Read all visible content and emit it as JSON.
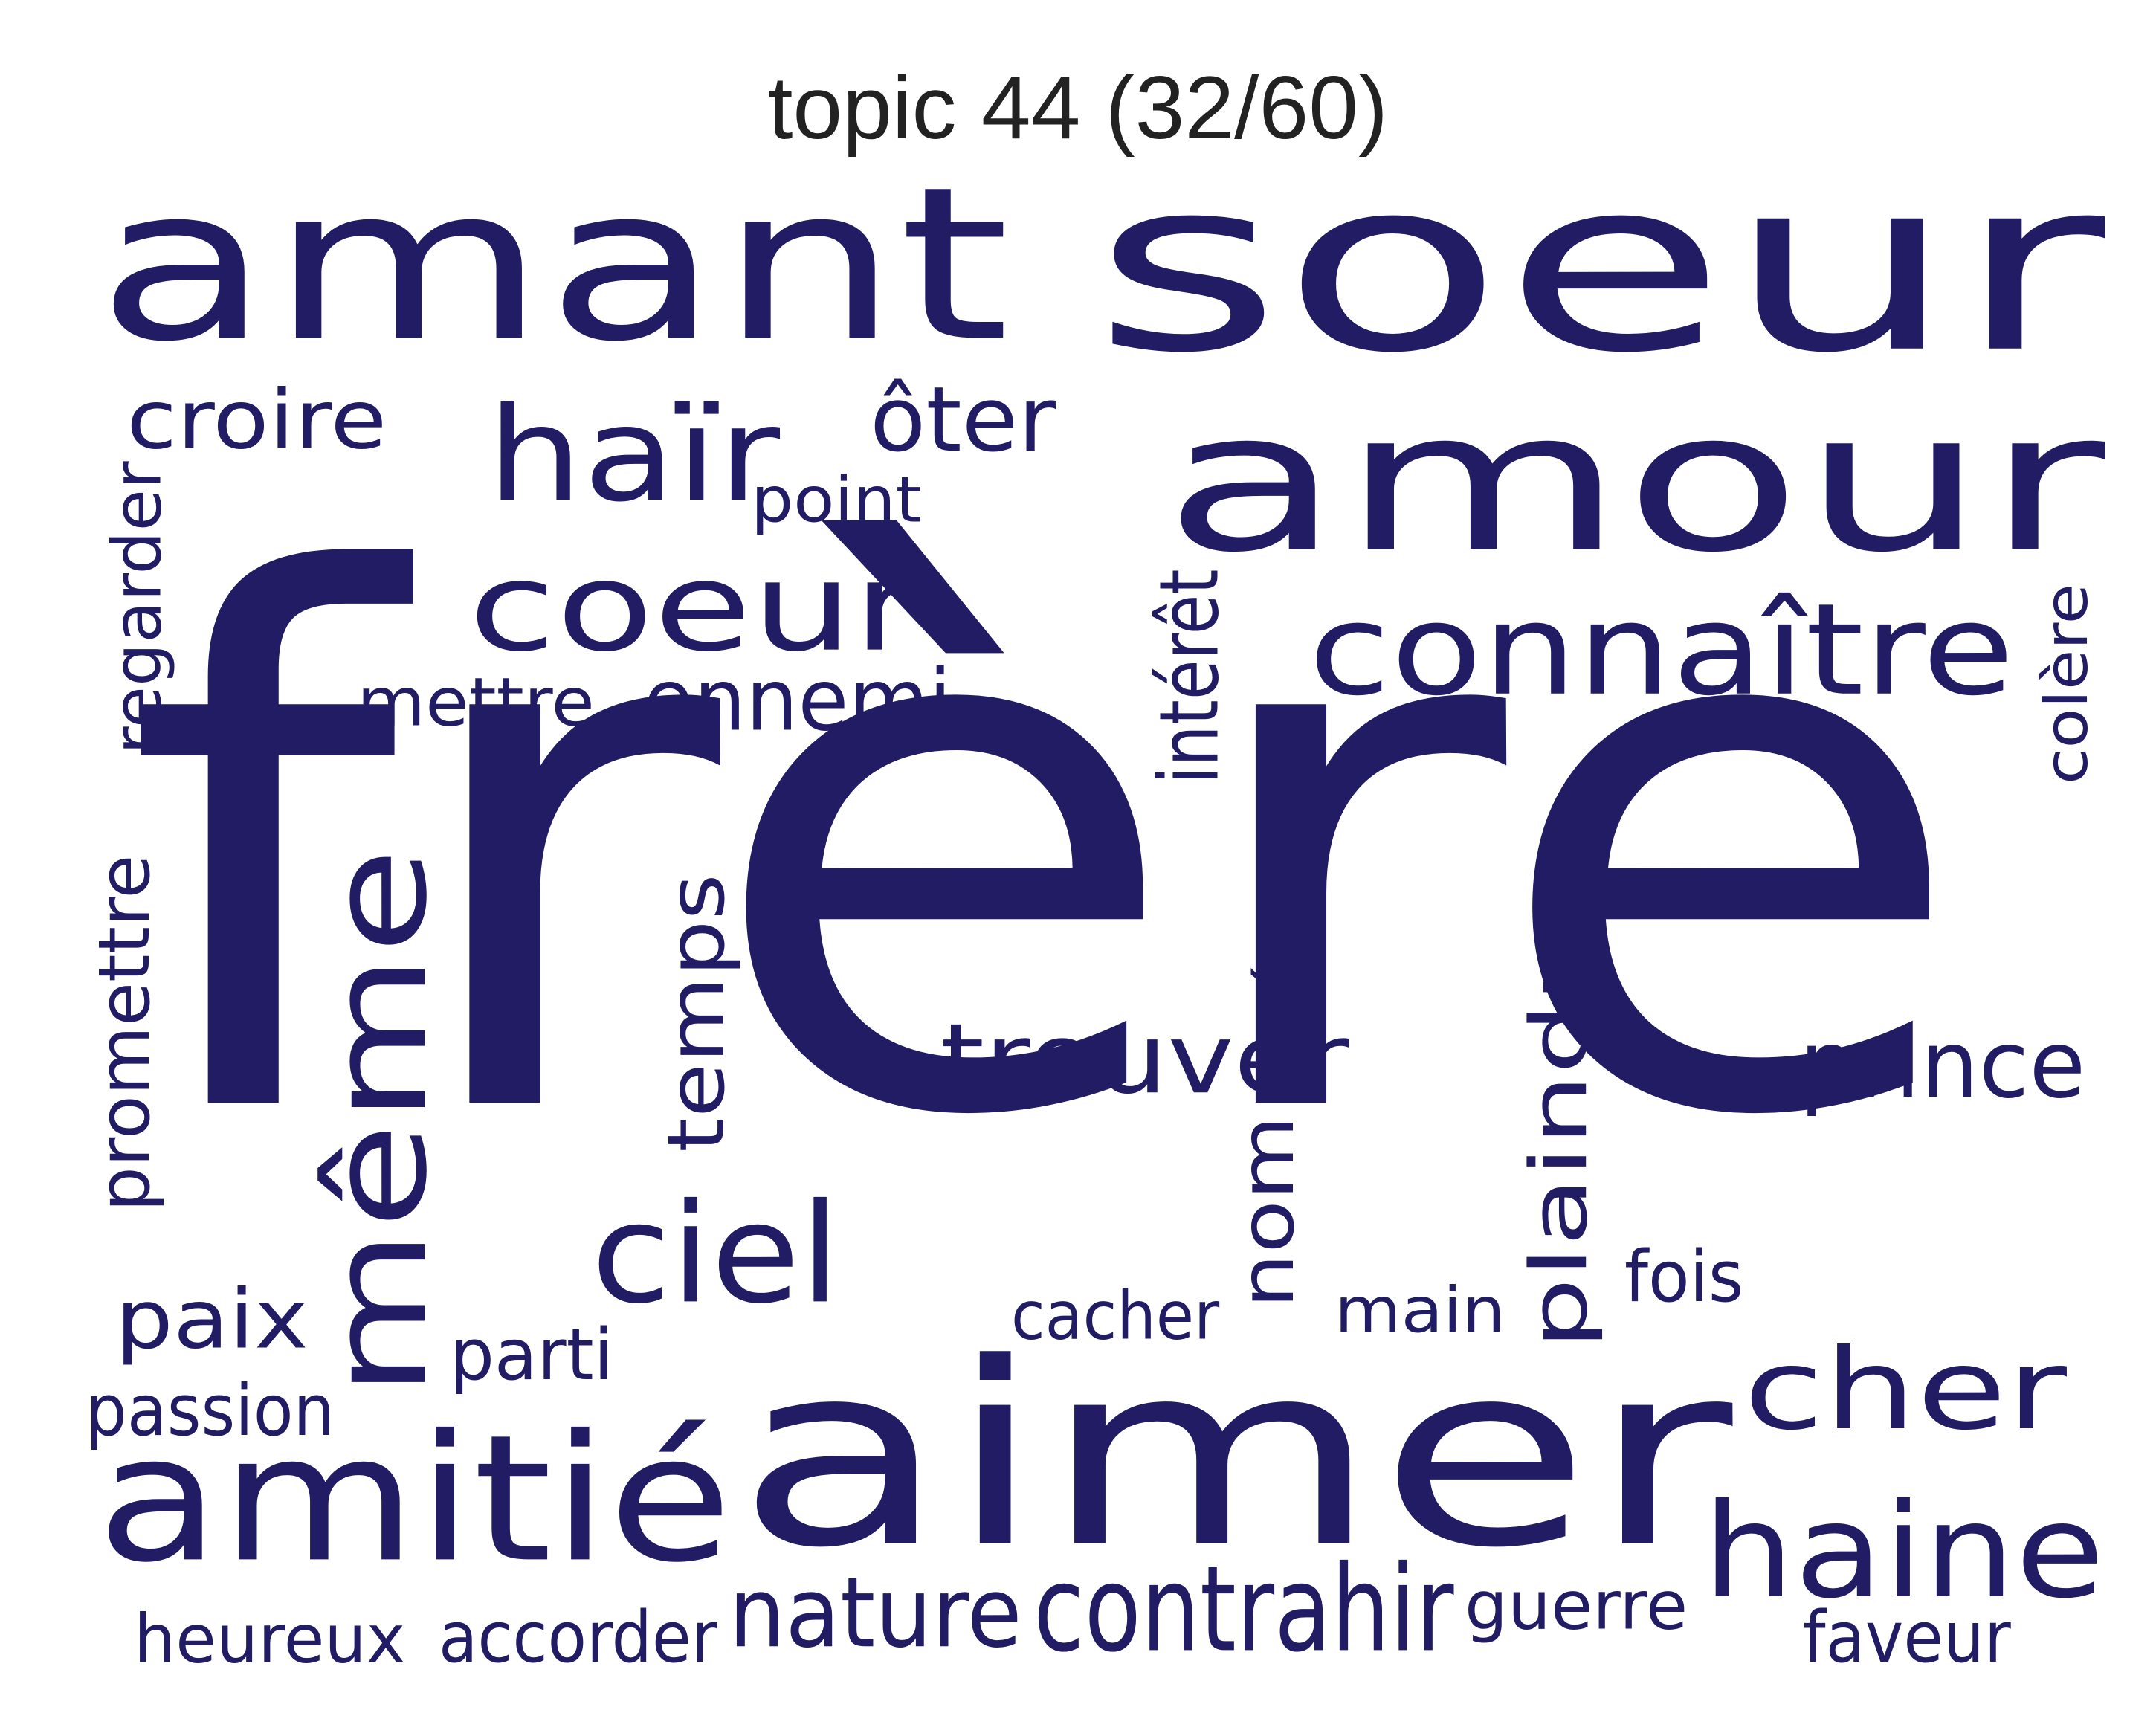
{
  "title": "topic 44 (32/60)",
  "colors": {
    "word": "#211c63",
    "title": "#222222",
    "background": "#ffffff"
  },
  "words": [
    {
      "id": "frere",
      "text": "frère",
      "orientation": "horizontal"
    },
    {
      "id": "soeur",
      "text": "soeur",
      "orientation": "horizontal"
    },
    {
      "id": "amant",
      "text": "amant",
      "orientation": "horizontal"
    },
    {
      "id": "aimer",
      "text": "aimer",
      "orientation": "horizontal"
    },
    {
      "id": "amour",
      "text": "amour",
      "orientation": "horizontal"
    },
    {
      "id": "amitie",
      "text": "amitié",
      "orientation": "horizontal"
    },
    {
      "id": "meme",
      "text": "même",
      "orientation": "vertical"
    },
    {
      "id": "haine",
      "text": "haine",
      "orientation": "horizontal"
    },
    {
      "id": "connaitre",
      "text": "connaître",
      "orientation": "horizontal"
    },
    {
      "id": "coeur",
      "text": "coeur",
      "orientation": "horizontal"
    },
    {
      "id": "cher",
      "text": "cher",
      "orientation": "horizontal"
    },
    {
      "id": "hair",
      "text": "haïr",
      "orientation": "horizontal"
    },
    {
      "id": "plaindre",
      "text": "plaindre",
      "orientation": "vertical"
    },
    {
      "id": "ciel",
      "text": "ciel",
      "orientation": "horizontal"
    },
    {
      "id": "trouver",
      "text": "trouver",
      "orientation": "horizontal"
    },
    {
      "id": "contrahir",
      "text": "contrahir",
      "orientation": "horizontal"
    },
    {
      "id": "temps",
      "text": "temps",
      "orientation": "vertical"
    },
    {
      "id": "nature",
      "text": "nature",
      "orientation": "horizontal"
    },
    {
      "id": "nom",
      "text": "nom",
      "orientation": "vertical"
    },
    {
      "id": "prince",
      "text": "prince",
      "orientation": "horizontal"
    },
    {
      "id": "croire",
      "text": "croire",
      "orientation": "horizontal"
    },
    {
      "id": "oter",
      "text": "ôter",
      "orientation": "horizontal"
    },
    {
      "id": "paix",
      "text": "paix",
      "orientation": "horizontal"
    },
    {
      "id": "ennemi",
      "text": "ennemi",
      "orientation": "horizontal"
    },
    {
      "id": "regarder",
      "text": "regarder",
      "orientation": "vertical"
    },
    {
      "id": "promettre",
      "text": "promettre",
      "orientation": "vertical"
    },
    {
      "id": "guerre",
      "text": "guerre",
      "orientation": "horizontal"
    },
    {
      "id": "heureux",
      "text": "heureux",
      "orientation": "horizontal"
    },
    {
      "id": "accorder",
      "text": "accorder",
      "orientation": "horizontal"
    },
    {
      "id": "passion",
      "text": "passion",
      "orientation": "horizontal"
    },
    {
      "id": "mettre",
      "text": "mettre",
      "orientation": "horizontal"
    },
    {
      "id": "point",
      "text": "point",
      "orientation": "horizontal"
    },
    {
      "id": "parti",
      "text": "parti",
      "orientation": "horizontal"
    },
    {
      "id": "cacher",
      "text": "cacher",
      "orientation": "horizontal"
    },
    {
      "id": "main",
      "text": "main",
      "orientation": "horizontal"
    },
    {
      "id": "fois",
      "text": "fois",
      "orientation": "horizontal"
    },
    {
      "id": "faveur",
      "text": "faveur",
      "orientation": "horizontal"
    },
    {
      "id": "interet",
      "text": "intérêt",
      "orientation": "vertical"
    },
    {
      "id": "epouser",
      "text": "épouser",
      "orientation": "vertical"
    },
    {
      "id": "colere",
      "text": "colère",
      "orientation": "vertical"
    }
  ]
}
